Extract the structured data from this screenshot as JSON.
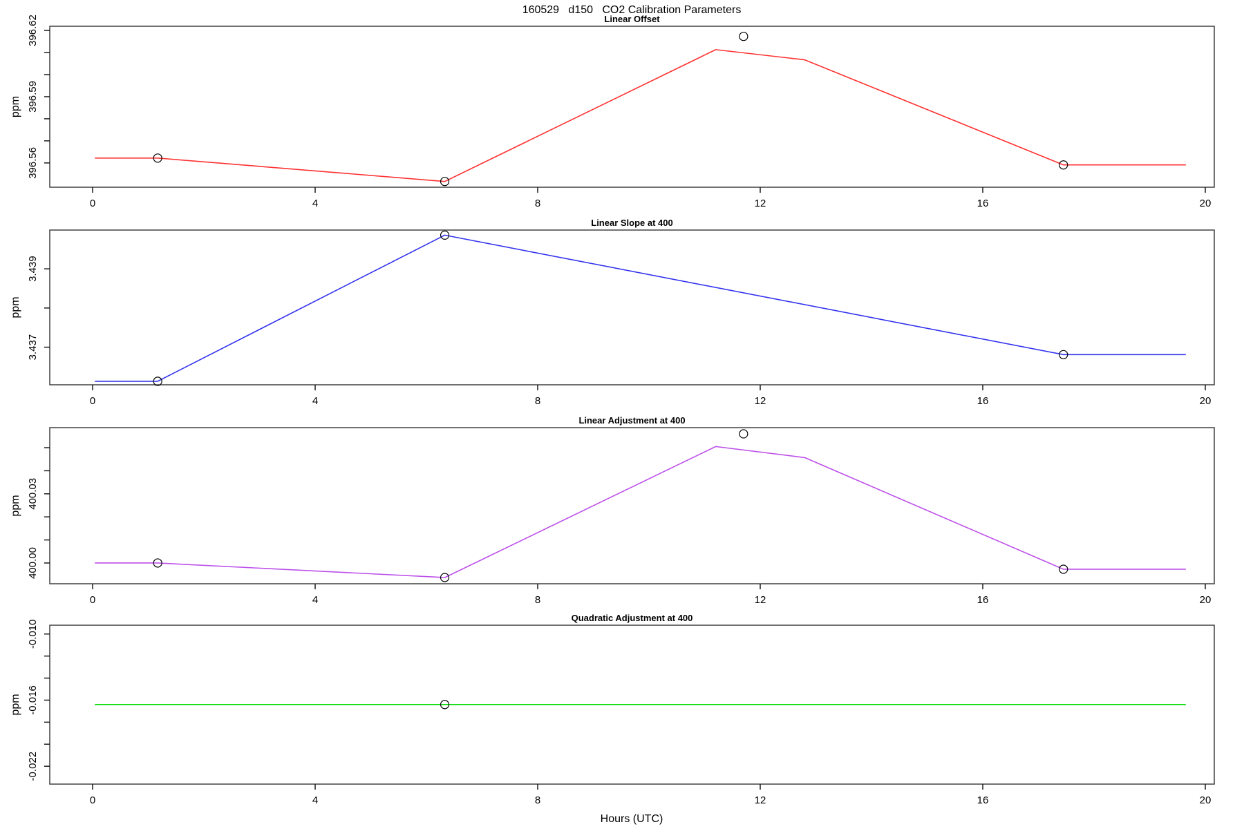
{
  "figure": {
    "title": "160529   d150   CO2 Calibration Parameters",
    "xlabel": "Hours (UTC)"
  },
  "chart_data": {
    "type": "line",
    "title": "160529   d150   CO2 Calibration Parameters",
    "xlabel": "Hours (UTC)",
    "x_axis": {
      "xlim": [
        -0.77,
        20.16
      ],
      "xticks": [
        0,
        4,
        8,
        12,
        16,
        20
      ],
      "xtick_labels": [
        "0",
        "4",
        "8",
        "12",
        "16",
        "20"
      ]
    },
    "point_marker": "open-circle",
    "panels": [
      {
        "title": "Linear Offset",
        "ylabel": "ppm",
        "color": "#ff3030",
        "ylim": [
          396.549,
          396.6219
        ],
        "yticks": [
          {
            "v": 396.56,
            "label": "396.56"
          },
          {
            "v": 396.57
          },
          {
            "v": 396.58
          },
          {
            "v": 396.59,
            "label": "396.59"
          },
          {
            "v": 396.6
          },
          {
            "v": 396.61
          },
          {
            "v": 396.62,
            "label": "396.62"
          }
        ],
        "line": [
          [
            0.04,
            396.5622
          ],
          [
            1.17,
            396.5622
          ],
          [
            6.33,
            396.5516
          ],
          [
            11.2,
            396.6113
          ],
          [
            12.8,
            396.6067
          ],
          [
            17.45,
            396.5591
          ],
          [
            19.65,
            396.5591
          ]
        ],
        "points": [
          [
            1.17,
            396.5622
          ],
          [
            6.33,
            396.5516
          ],
          [
            11.7,
            396.6173
          ],
          [
            17.45,
            396.5591
          ]
        ]
      },
      {
        "title": "Linear Slope at 400",
        "ylabel": "ppm",
        "color": "#3333ee",
        "ylim": [
          3.43604,
          3.43999
        ],
        "yticks": [
          {
            "v": 3.437,
            "label": "3.437"
          },
          {
            "v": 3.438
          },
          {
            "v": 3.439,
            "label": "3.439"
          }
        ],
        "line": [
          [
            0.04,
            3.43613
          ],
          [
            1.17,
            3.43613
          ],
          [
            6.33,
            3.43986
          ],
          [
            17.45,
            3.43681
          ],
          [
            19.65,
            3.43681
          ]
        ],
        "points": [
          [
            1.17,
            3.43613
          ],
          [
            6.33,
            3.43986
          ],
          [
            17.45,
            3.43681
          ]
        ]
      },
      {
        "title": "Linear Adjustment at 400",
        "ylabel": "ppm",
        "color": "#bd4fea",
        "ylim": [
          399.991,
          400.0587
        ],
        "yticks": [
          {
            "v": 400.0,
            "label": "400.00"
          },
          {
            "v": 400.01
          },
          {
            "v": 400.02
          },
          {
            "v": 400.03,
            "label": "400.03"
          },
          {
            "v": 400.04
          },
          {
            "v": 400.05
          }
        ],
        "line": [
          [
            0.04,
            400.0
          ],
          [
            1.17,
            400.0
          ],
          [
            6.33,
            399.9937
          ],
          [
            11.2,
            400.0505
          ],
          [
            12.8,
            400.0457
          ],
          [
            17.45,
            399.9973
          ],
          [
            19.65,
            399.9973
          ]
        ],
        "points": [
          [
            1.17,
            400.0
          ],
          [
            6.33,
            399.9937
          ],
          [
            11.7,
            400.056
          ],
          [
            17.45,
            399.9973
          ]
        ]
      },
      {
        "title": "Quadratic Adjustment at 400",
        "ylabel": "ppm",
        "color": "#00dc00",
        "ylim": [
          -0.02362,
          -0.0092
        ],
        "yticks": [
          {
            "v": -0.022,
            "label": "-0.022"
          },
          {
            "v": -0.02
          },
          {
            "v": -0.018
          },
          {
            "v": -0.016,
            "label": "-0.016"
          },
          {
            "v": -0.014
          },
          {
            "v": -0.012
          },
          {
            "v": -0.01,
            "label": "-0.010"
          }
        ],
        "line": [
          [
            0.04,
            -0.0164
          ],
          [
            19.65,
            -0.0164
          ]
        ],
        "points": [
          [
            6.33,
            -0.0164
          ]
        ]
      }
    ]
  }
}
